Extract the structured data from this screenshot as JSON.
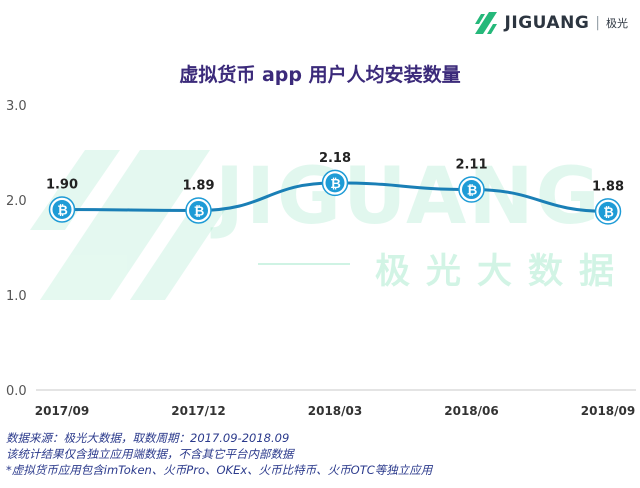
{
  "brand": {
    "name": "JIGUANG",
    "name_cn": "极光",
    "watermark_en": "JIGUANG",
    "watermark_cn": "极光大数据",
    "color": "#25b87a"
  },
  "chart_data": {
    "type": "line",
    "title": "虚拟货币 app 用户人均安装数量",
    "categories": [
      "2017/09",
      "2017/12",
      "2018/03",
      "2018/06",
      "2018/09"
    ],
    "series": [
      {
        "values": [
          1.9,
          1.89,
          2.18,
          2.11,
          1.88
        ]
      }
    ],
    "data_labels": [
      "1.90",
      "1.89",
      "2.18",
      "2.11",
      "1.88"
    ],
    "y_ticks": [
      "3.0",
      "2.0",
      "1.0",
      "0.0"
    ],
    "ylim": [
      0,
      3
    ],
    "grid": false,
    "line_color": "#1a7fb6",
    "marker_icon": "bitcoin-icon",
    "marker_color": "#1e9bd6"
  },
  "footnotes": [
    "数据来源：极光大数据，取数周期：2017.09-2018.09",
    "该统计结果仅含独立应用端数据，不含其它平台内部数据",
    "*虚拟货币应用包含imToken、火币Pro、OKEx、火币比特币、火币OTC等独立应用"
  ]
}
